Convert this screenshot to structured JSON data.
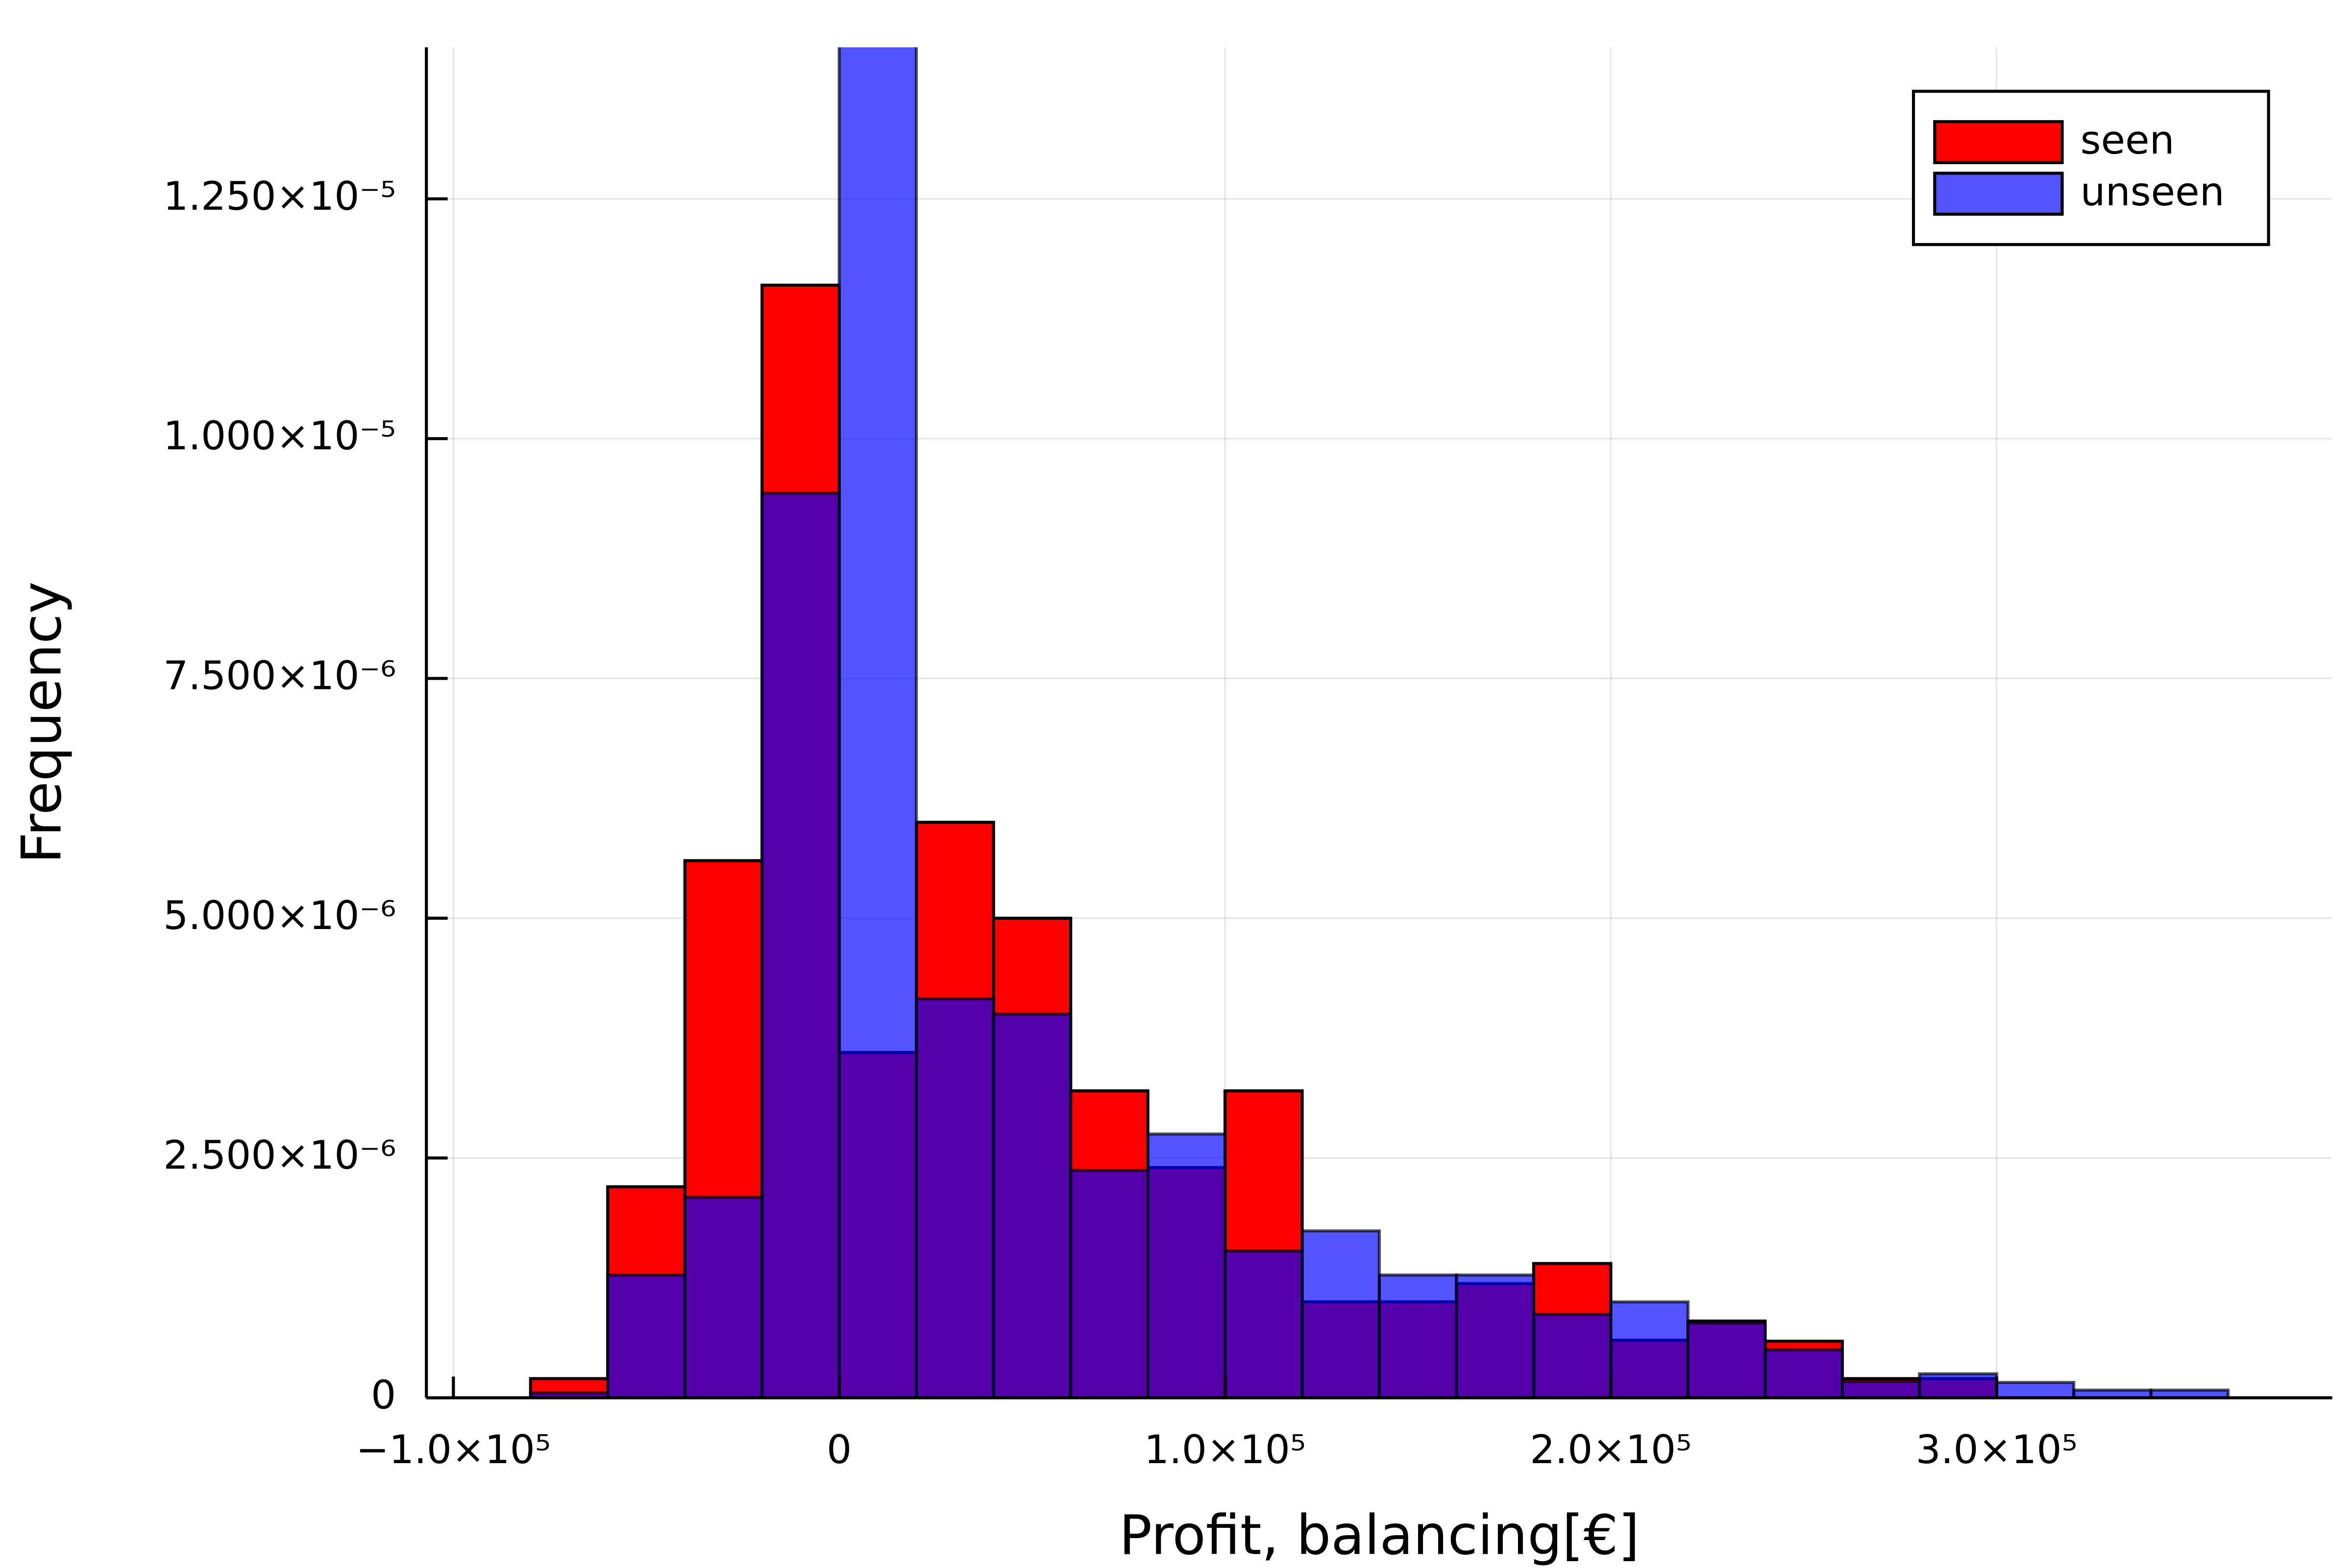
{
  "chart_data": {
    "type": "histogram",
    "x_label": "Profit, balancing[€]",
    "y_label": "Frequency",
    "bins": [
      -80000,
      -60000,
      -40000,
      -20000,
      0,
      20000,
      40000,
      60000,
      80000,
      100000,
      120000,
      140000,
      160000,
      180000,
      200000,
      220000,
      240000,
      260000,
      280000,
      300000,
      320000,
      340000,
      360000
    ],
    "series": [
      {
        "name": "seen",
        "color": "#ff0000",
        "opacity": 1,
        "values": [
          2e-07,
          2.2e-06,
          5.6e-06,
          1.16e-05,
          3.6e-06,
          6e-06,
          5e-06,
          3.2e-06,
          2.4e-06,
          3.2e-06,
          1e-06,
          1e-06,
          1.19e-06,
          1.4e-06,
          6e-07,
          8e-07,
          5.9e-07,
          2e-07,
          2e-07,
          0,
          0,
          0
        ]
      },
      {
        "name": "unseen",
        "color": "#0000ff",
        "opacity": 0.67,
        "values": [
          5e-08,
          1.28e-06,
          2.09e-06,
          9.43e-06,
          1.41e-05,
          4.16e-06,
          4e-06,
          2.37e-06,
          2.75e-06,
          1.53e-06,
          1.74e-06,
          1.28e-06,
          1.28e-06,
          8.7e-07,
          1e-06,
          7.8e-07,
          5e-07,
          1.7e-07,
          2.5e-07,
          1.6e-07,
          8e-08,
          8e-08
        ]
      }
    ],
    "xlim": [
      -107000,
      387000
    ],
    "ylim": [
      0,
      1.408e-05
    ],
    "xticks": [
      {
        "value": -100000,
        "label": "−1.0×10⁵"
      },
      0,
      {
        "value": 100000,
        "label": "1.0×10⁵"
      },
      {
        "value": 200000,
        "label": "2.0×10⁵"
      },
      {
        "value": 300000,
        "label": "3.0×10⁵"
      }
    ],
    "yticks": [
      0,
      {
        "value": 2.5e-06,
        "label": "2.500×10⁻⁶"
      },
      {
        "value": 5e-06,
        "label": "5.000×10⁻⁶"
      },
      {
        "value": 7.5e-06,
        "label": "7.500×10⁻⁶"
      },
      {
        "value": 1e-05,
        "label": "1.000×10⁻⁵"
      },
      {
        "value": 1.25e-05,
        "label": "1.250×10⁻⁵"
      }
    ],
    "grid": true,
    "legend": "upper right"
  }
}
